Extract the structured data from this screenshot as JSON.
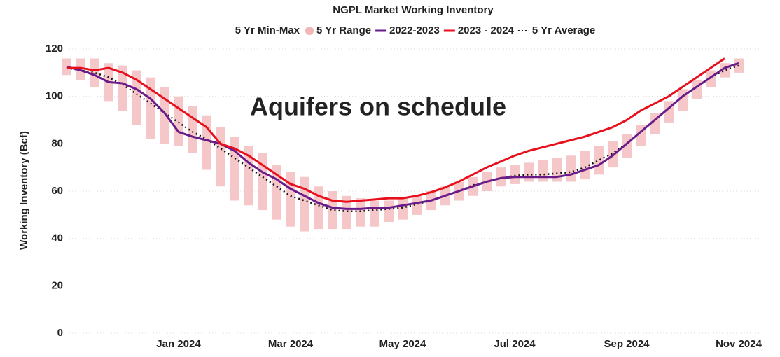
{
  "chart_data": {
    "type": "line",
    "title": "NGPL Market Working Inventory",
    "legend_title": "5 Yr Min-Max",
    "annotation": "Aquifers on schedule",
    "y_label": "Working Inventory (Bcf)",
    "categories": [
      null,
      null,
      null,
      null,
      null,
      null,
      null,
      null,
      "Jan 2024",
      null,
      null,
      null,
      null,
      null,
      null,
      null,
      "Mar 2024",
      null,
      null,
      null,
      null,
      null,
      null,
      null,
      "May 2024",
      null,
      null,
      null,
      null,
      null,
      null,
      null,
      "Jul 2024",
      null,
      null,
      null,
      null,
      null,
      null,
      null,
      "Sep 2024",
      null,
      null,
      null,
      null,
      null,
      null,
      null,
      "Nov 2024"
    ],
    "range": {
      "name": "5 Yr Range",
      "color": "#f2b5b8",
      "min": [
        109,
        107,
        104,
        98,
        94,
        88,
        82,
        80,
        79,
        76,
        69,
        62,
        56,
        54,
        52,
        48,
        45,
        43,
        44,
        44,
        44,
        45,
        45,
        47,
        48,
        50,
        52,
        54,
        56,
        58,
        60,
        62,
        63,
        64,
        64,
        64,
        64,
        65,
        67,
        70,
        74,
        79,
        84,
        89,
        94,
        99,
        104,
        108,
        110
      ],
      "max": [
        116,
        116,
        116,
        114,
        113,
        111,
        108,
        104,
        100,
        96,
        92,
        87,
        83,
        79,
        76,
        71,
        68,
        66,
        62,
        60,
        58,
        57,
        56,
        56,
        57,
        58,
        60,
        62,
        64,
        66,
        68,
        70,
        71,
        72,
        73,
        74,
        75,
        77,
        79,
        81,
        84,
        88,
        93,
        98,
        103,
        107,
        111,
        114,
        116
      ]
    },
    "series": [
      {
        "name": "5 Yr Average",
        "color": "#111111",
        "style": "dotted",
        "values": [
          112,
          111,
          110,
          108,
          105,
          101,
          97,
          93,
          89,
          85,
          82,
          78,
          74,
          70,
          66,
          62,
          58,
          56,
          54,
          52,
          51.5,
          51.5,
          52,
          52.5,
          53,
          54.5,
          56,
          58,
          60,
          62.5,
          64,
          65.5,
          66.5,
          67,
          67,
          67.5,
          68,
          70,
          73,
          76,
          80,
          85,
          90,
          95,
          100,
          104,
          108,
          111,
          113
        ]
      },
      {
        "name": "2022-2023",
        "color": "#6a1b8a",
        "style": "solid",
        "values": [
          112.5,
          111,
          109,
          106,
          105.5,
          103,
          99,
          93,
          85,
          83,
          81.5,
          80,
          77,
          72,
          68,
          65,
          61,
          58,
          55,
          53,
          52.5,
          52.5,
          53,
          53,
          54,
          55,
          56,
          58,
          60,
          62,
          64,
          65.5,
          66,
          66,
          66,
          66,
          67,
          69,
          71,
          75,
          80,
          85,
          90,
          95,
          100,
          104,
          108,
          112,
          114
        ]
      },
      {
        "name": "2023 - 2024",
        "color": "#e8101c",
        "style": "solid",
        "values": [
          112,
          112,
          111,
          112,
          110,
          107,
          103,
          99,
          95,
          91,
          87,
          80,
          78,
          75,
          71,
          67,
          63,
          61,
          58,
          56,
          55.5,
          56,
          56.5,
          57,
          57,
          58,
          59.5,
          61.5,
          64,
          67,
          70,
          72.5,
          75,
          77,
          78.5,
          80,
          81.5,
          83,
          85,
          87,
          90,
          94,
          97,
          100,
          104,
          108,
          112,
          116,
          null
        ]
      }
    ],
    "ylim": [
      0,
      120
    ],
    "yticks": [
      0,
      20,
      40,
      60,
      80,
      100,
      120
    ],
    "grid": true
  }
}
